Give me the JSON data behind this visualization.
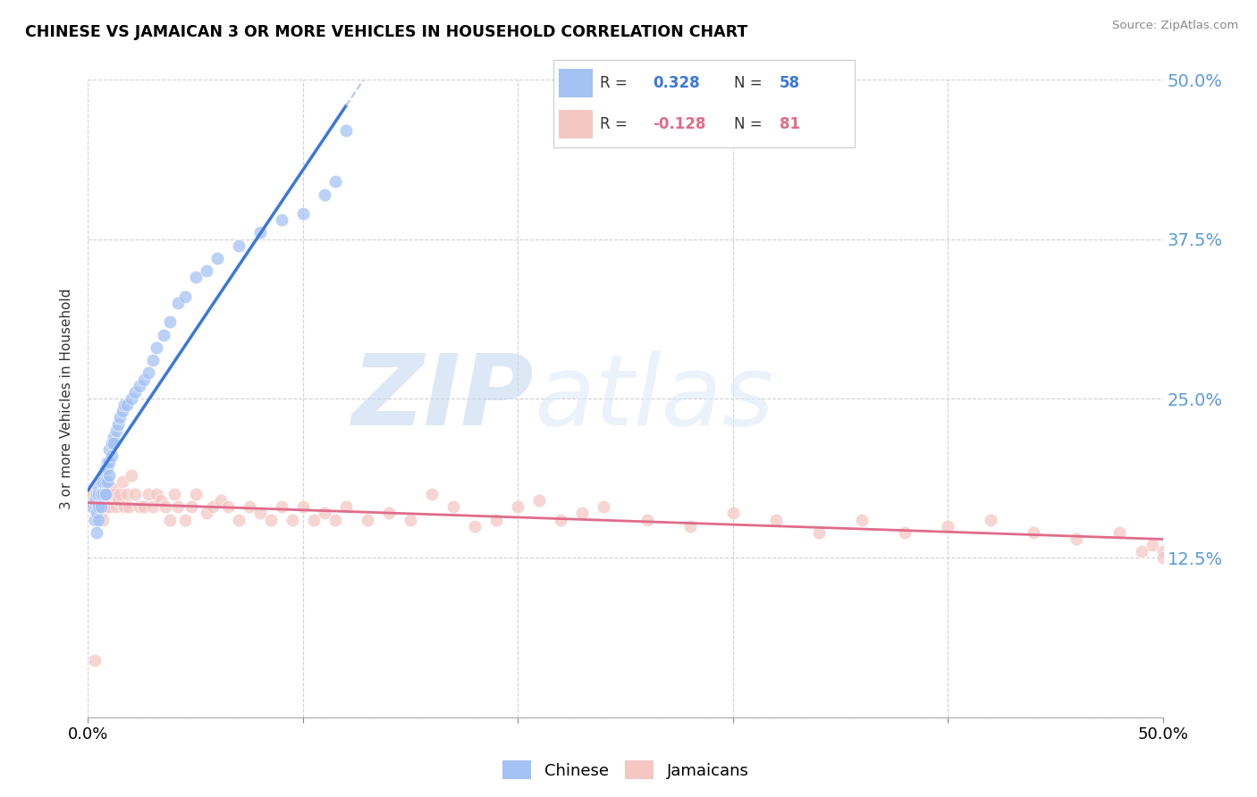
{
  "title": "CHINESE VS JAMAICAN 3 OR MORE VEHICLES IN HOUSEHOLD CORRELATION CHART",
  "source": "Source: ZipAtlas.com",
  "ylabel": "3 or more Vehicles in Household",
  "xlim": [
    0.0,
    0.5
  ],
  "ylim": [
    0.0,
    0.5
  ],
  "yticks": [
    0.0,
    0.125,
    0.25,
    0.375,
    0.5
  ],
  "ytick_labels": [
    "",
    "12.5%",
    "25.0%",
    "37.5%",
    "50.0%"
  ],
  "legend_labels": [
    "Chinese",
    "Jamaicans"
  ],
  "R_chinese": 0.328,
  "N_chinese": 58,
  "R_jamaican": -0.128,
  "N_jamaican": 81,
  "chinese_color": "#a4c2f4",
  "chinese_line_color": "#3c78d8",
  "jamaican_color": "#f4c7c3",
  "jamaican_line_color": "#e06c8a",
  "diagonal_color": "#b4c7e7",
  "watermark_zip": "ZIP",
  "watermark_atlas": "atlas",
  "watermark_color": "#d0e4f7",
  "chinese_x": [
    0.002,
    0.003,
    0.003,
    0.004,
    0.004,
    0.004,
    0.005,
    0.005,
    0.005,
    0.005,
    0.006,
    0.006,
    0.006,
    0.007,
    0.007,
    0.007,
    0.007,
    0.008,
    0.008,
    0.008,
    0.008,
    0.009,
    0.009,
    0.009,
    0.01,
    0.01,
    0.01,
    0.011,
    0.011,
    0.012,
    0.012,
    0.013,
    0.014,
    0.015,
    0.016,
    0.017,
    0.018,
    0.02,
    0.022,
    0.024,
    0.026,
    0.028,
    0.03,
    0.032,
    0.035,
    0.038,
    0.042,
    0.045,
    0.05,
    0.055,
    0.06,
    0.07,
    0.08,
    0.09,
    0.1,
    0.11,
    0.115,
    0.12
  ],
  "chinese_y": [
    0.165,
    0.17,
    0.155,
    0.175,
    0.16,
    0.145,
    0.18,
    0.175,
    0.165,
    0.155,
    0.185,
    0.175,
    0.165,
    0.19,
    0.19,
    0.185,
    0.175,
    0.195,
    0.185,
    0.175,
    0.175,
    0.2,
    0.195,
    0.185,
    0.21,
    0.2,
    0.19,
    0.215,
    0.205,
    0.22,
    0.215,
    0.225,
    0.23,
    0.235,
    0.24,
    0.245,
    0.245,
    0.25,
    0.255,
    0.26,
    0.265,
    0.27,
    0.28,
    0.29,
    0.3,
    0.31,
    0.325,
    0.33,
    0.345,
    0.35,
    0.36,
    0.37,
    0.38,
    0.39,
    0.395,
    0.41,
    0.42,
    0.46
  ],
  "jamaican_x": [
    0.002,
    0.003,
    0.004,
    0.005,
    0.006,
    0.006,
    0.007,
    0.007,
    0.008,
    0.008,
    0.009,
    0.009,
    0.01,
    0.01,
    0.011,
    0.012,
    0.013,
    0.014,
    0.015,
    0.016,
    0.017,
    0.018,
    0.019,
    0.02,
    0.022,
    0.024,
    0.026,
    0.028,
    0.03,
    0.032,
    0.034,
    0.036,
    0.038,
    0.04,
    0.042,
    0.045,
    0.048,
    0.05,
    0.055,
    0.058,
    0.062,
    0.065,
    0.07,
    0.075,
    0.08,
    0.085,
    0.09,
    0.095,
    0.1,
    0.105,
    0.11,
    0.115,
    0.12,
    0.13,
    0.14,
    0.15,
    0.16,
    0.17,
    0.18,
    0.19,
    0.2,
    0.21,
    0.22,
    0.23,
    0.24,
    0.26,
    0.28,
    0.3,
    0.32,
    0.34,
    0.36,
    0.38,
    0.4,
    0.42,
    0.44,
    0.46,
    0.48,
    0.49,
    0.495,
    0.5,
    0.5
  ],
  "jamaican_y": [
    0.175,
    0.045,
    0.17,
    0.165,
    0.18,
    0.16,
    0.185,
    0.155,
    0.175,
    0.165,
    0.185,
    0.165,
    0.175,
    0.165,
    0.18,
    0.175,
    0.165,
    0.17,
    0.175,
    0.185,
    0.165,
    0.175,
    0.165,
    0.19,
    0.175,
    0.165,
    0.165,
    0.175,
    0.165,
    0.175,
    0.17,
    0.165,
    0.155,
    0.175,
    0.165,
    0.155,
    0.165,
    0.175,
    0.16,
    0.165,
    0.17,
    0.165,
    0.155,
    0.165,
    0.16,
    0.155,
    0.165,
    0.155,
    0.165,
    0.155,
    0.16,
    0.155,
    0.165,
    0.155,
    0.16,
    0.155,
    0.175,
    0.165,
    0.15,
    0.155,
    0.165,
    0.17,
    0.155,
    0.16,
    0.165,
    0.155,
    0.15,
    0.16,
    0.155,
    0.145,
    0.155,
    0.145,
    0.15,
    0.155,
    0.145,
    0.14,
    0.145,
    0.13,
    0.135,
    0.13,
    0.125
  ]
}
